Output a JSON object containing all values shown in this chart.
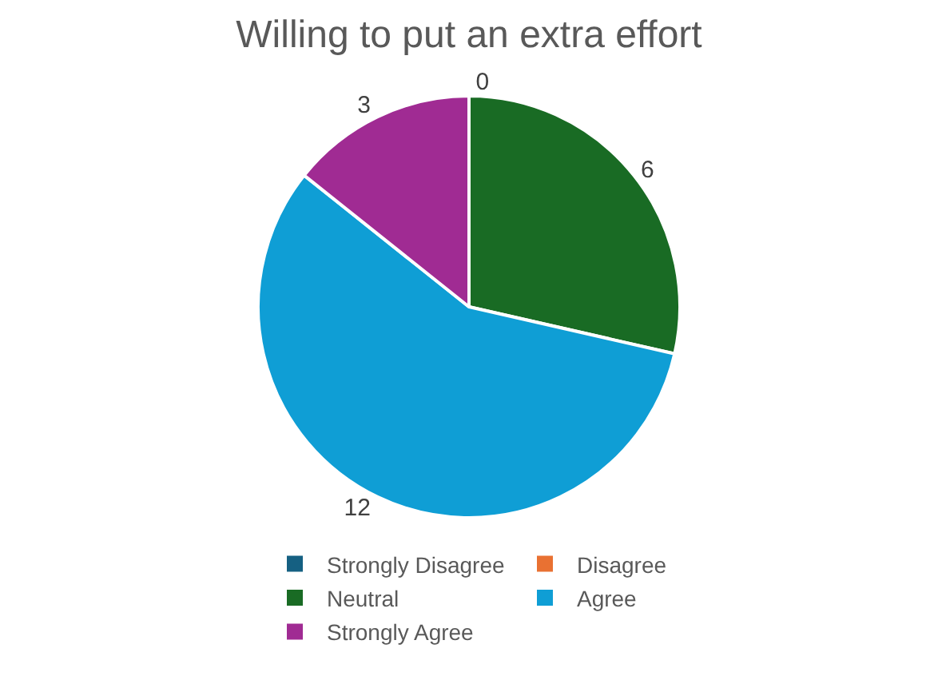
{
  "chart_data": {
    "type": "pie",
    "title": "Willing to put an extra effort",
    "categories": [
      "Strongly Disagree",
      "Disagree",
      "Neutral",
      "Agree",
      "Strongly Agree"
    ],
    "values": [
      0,
      0,
      6,
      12,
      3
    ],
    "value_labels": [
      "0",
      null,
      "6",
      "12",
      "3"
    ],
    "colors": [
      "#156082",
      "#e97132",
      "#196b24",
      "#0f9ed5",
      "#a02b93"
    ],
    "legend": "bottom"
  }
}
